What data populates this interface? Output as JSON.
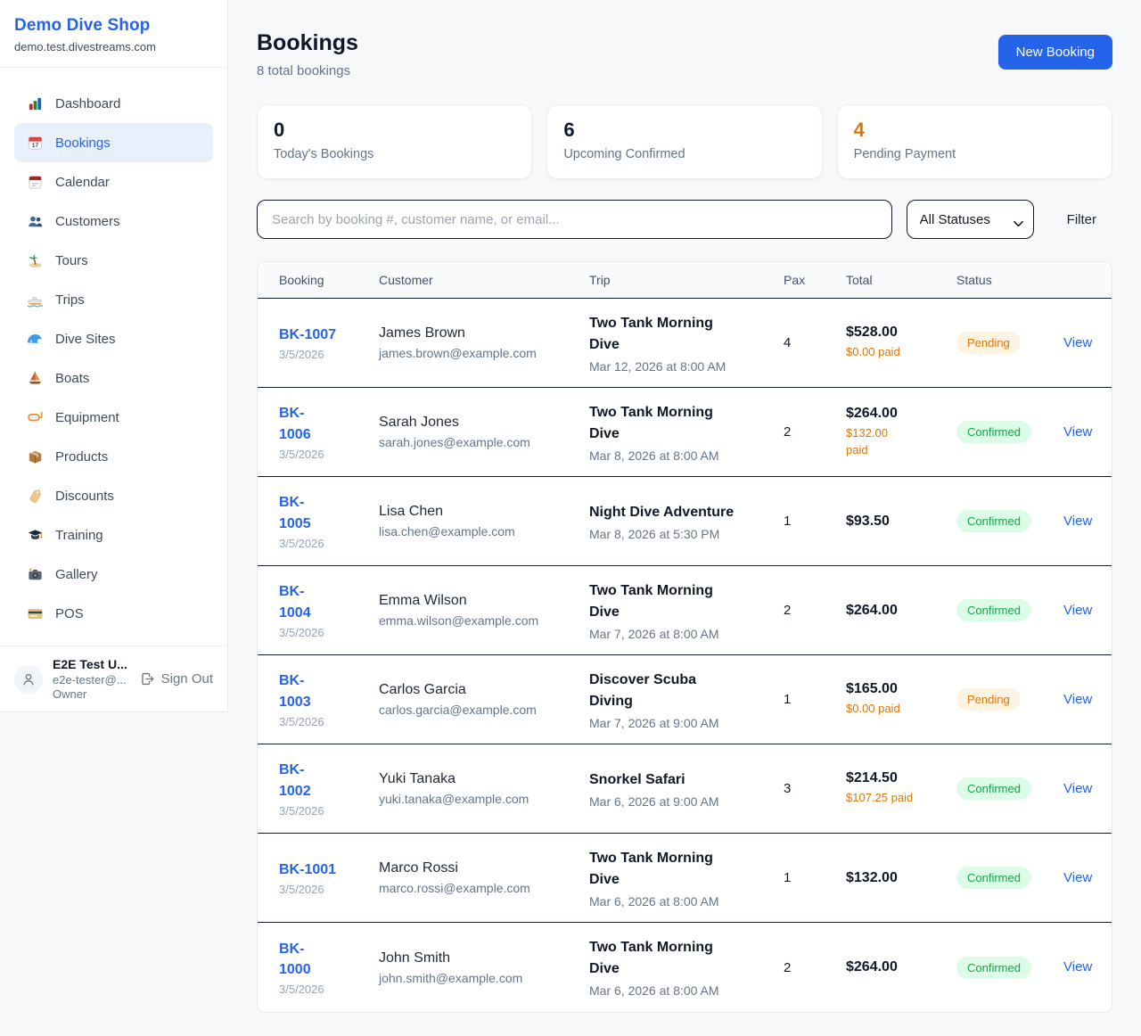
{
  "app": {
    "name": "Demo Dive Shop",
    "domain": "demo.test.divestreams.com"
  },
  "colors": {
    "accent_blue": "#2563eb",
    "pending_orange": "#d97706",
    "confirmed_green": "#16a34a",
    "dark_text": "#0f172a"
  },
  "sidebar": {
    "items": [
      {
        "label": "Dashboard",
        "icon": "bar-chart-icon",
        "active": false
      },
      {
        "label": "Bookings",
        "icon": "calendar-date-icon",
        "active": true
      },
      {
        "label": "Calendar",
        "icon": "tear-calendar-icon",
        "active": false
      },
      {
        "label": "Customers",
        "icon": "people-icon",
        "active": false
      },
      {
        "label": "Tours",
        "icon": "island-icon",
        "active": false
      },
      {
        "label": "Trips",
        "icon": "speedboat-icon",
        "active": false
      },
      {
        "label": "Dive Sites",
        "icon": "wave-icon",
        "active": false
      },
      {
        "label": "Boats",
        "icon": "sailboat-icon",
        "active": false
      },
      {
        "label": "Equipment",
        "icon": "diving-mask-icon",
        "active": false
      },
      {
        "label": "Products",
        "icon": "package-icon",
        "active": false
      },
      {
        "label": "Discounts",
        "icon": "tag-icon",
        "active": false
      },
      {
        "label": "Training",
        "icon": "graduation-cap-icon",
        "active": false
      },
      {
        "label": "Gallery",
        "icon": "camera-icon",
        "active": false
      },
      {
        "label": "POS",
        "icon": "credit-card-icon",
        "active": false
      }
    ],
    "user": {
      "name": "E2E Test U...",
      "email": "e2e-tester@...",
      "role": "Owner",
      "sign_out_label": "Sign Out"
    }
  },
  "header": {
    "title": "Bookings",
    "subtitle": "8 total bookings",
    "new_booking_label": "New Booking"
  },
  "stats": [
    {
      "value": "0",
      "label": "Today's Bookings",
      "color": "#0f172a"
    },
    {
      "value": "6",
      "label": "Upcoming Confirmed",
      "color": "#0f172a"
    },
    {
      "value": "4",
      "label": "Pending Payment",
      "color": "#d97706"
    }
  ],
  "filters": {
    "search_placeholder": "Search by booking #, customer name, or email...",
    "search_value": "",
    "status_selected": "All Statuses",
    "filter_label": "Filter"
  },
  "table": {
    "columns": [
      "Booking",
      "Customer",
      "Trip",
      "Pax",
      "Total",
      "Status"
    ],
    "view_label": "View",
    "rows": [
      {
        "id": "BK-1007",
        "id_wrap": false,
        "date": "3/5/2026",
        "customer_name": "James Brown",
        "customer_email": "james.brown@example.com",
        "trip_name": "Two Tank Morning Dive",
        "trip_wrap": true,
        "trip_datetime": "Mar 12, 2026 at 8:00 AM",
        "pax": "4",
        "total": "$528.00",
        "paid": "$0.00 paid",
        "paid_wrap": false,
        "status": "Pending"
      },
      {
        "id": "BK-1006",
        "id_wrap": true,
        "date": "3/5/2026",
        "customer_name": "Sarah Jones",
        "customer_email": "sarah.jones@example.com",
        "trip_name": "Two Tank Morning Dive",
        "trip_wrap": true,
        "trip_datetime": "Mar 8, 2026 at 8:00 AM",
        "pax": "2",
        "total": "$264.00",
        "paid": "$132.00 paid",
        "paid_wrap": true,
        "status": "Confirmed"
      },
      {
        "id": "BK-1005",
        "id_wrap": true,
        "date": "3/5/2026",
        "customer_name": "Lisa Chen",
        "customer_email": "lisa.chen@example.com",
        "trip_name": "Night Dive Adventure",
        "trip_wrap": false,
        "trip_datetime": "Mar 8, 2026 at 5:30 PM",
        "pax": "1",
        "total": "$93.50",
        "paid": null,
        "paid_wrap": false,
        "status": "Confirmed"
      },
      {
        "id": "BK-1004",
        "id_wrap": true,
        "date": "3/5/2026",
        "customer_name": "Emma Wilson",
        "customer_email": "emma.wilson@example.com",
        "trip_name": "Two Tank Morning Dive",
        "trip_wrap": true,
        "trip_datetime": "Mar 7, 2026 at 8:00 AM",
        "pax": "2",
        "total": "$264.00",
        "paid": null,
        "paid_wrap": false,
        "status": "Confirmed"
      },
      {
        "id": "BK-1003",
        "id_wrap": true,
        "date": "3/5/2026",
        "customer_name": "Carlos Garcia",
        "customer_email": "carlos.garcia@example.com",
        "trip_name": "Discover Scuba Diving",
        "trip_wrap": true,
        "trip_datetime": "Mar 7, 2026 at 9:00 AM",
        "pax": "1",
        "total": "$165.00",
        "paid": "$0.00 paid",
        "paid_wrap": false,
        "status": "Pending"
      },
      {
        "id": "BK-1002",
        "id_wrap": true,
        "date": "3/5/2026",
        "customer_name": "Yuki Tanaka",
        "customer_email": "yuki.tanaka@example.com",
        "trip_name": "Snorkel Safari",
        "trip_wrap": false,
        "trip_datetime": "Mar 6, 2026 at 9:00 AM",
        "pax": "3",
        "total": "$214.50",
        "paid": "$107.25 paid",
        "paid_wrap": false,
        "status": "Confirmed"
      },
      {
        "id": "BK-1001",
        "id_wrap": false,
        "date": "3/5/2026",
        "customer_name": "Marco Rossi",
        "customer_email": "marco.rossi@example.com",
        "trip_name": "Two Tank Morning Dive",
        "trip_wrap": true,
        "trip_datetime": "Mar 6, 2026 at 8:00 AM",
        "pax": "1",
        "total": "$132.00",
        "paid": null,
        "paid_wrap": false,
        "status": "Confirmed"
      },
      {
        "id": "BK-1000",
        "id_wrap": true,
        "date": "3/5/2026",
        "customer_name": "John Smith",
        "customer_email": "john.smith@example.com",
        "trip_name": "Two Tank Morning Dive",
        "trip_wrap": true,
        "trip_datetime": "Mar 6, 2026 at 8:00 AM",
        "pax": "2",
        "total": "$264.00",
        "paid": null,
        "paid_wrap": false,
        "status": "Confirmed"
      }
    ]
  }
}
